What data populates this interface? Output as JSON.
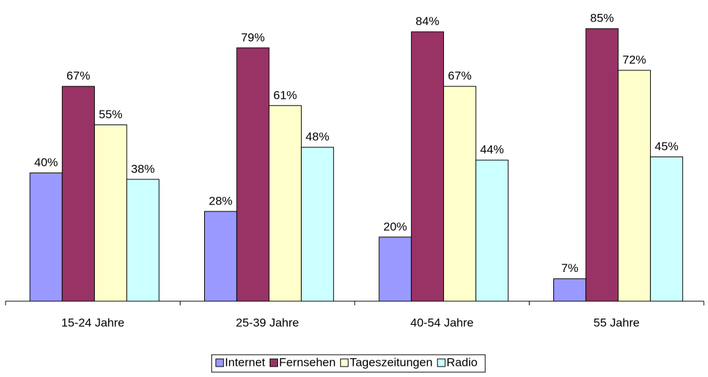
{
  "chart_data": {
    "type": "bar",
    "categories": [
      "15-24 Jahre",
      "25-39 Jahre",
      "40-54 Jahre",
      "55 Jahre"
    ],
    "series": [
      {
        "name": "Internet",
        "color": "#9999ff",
        "values": [
          40,
          28,
          20,
          7
        ],
        "value_labels": [
          "40%",
          "28%",
          "20%",
          "7%"
        ]
      },
      {
        "name": "Fernsehen",
        "color": "#993366",
        "values": [
          67,
          79,
          84,
          85
        ],
        "value_labels": [
          "67%",
          "79%",
          "84%",
          "85%"
        ]
      },
      {
        "name": "Tageszeitungen",
        "color": "#ffffcc",
        "values": [
          55,
          61,
          67,
          72
        ],
        "value_labels": [
          "55%",
          "61%",
          "67%",
          "72%"
        ]
      },
      {
        "name": "Radio",
        "color": "#ccffff",
        "values": [
          38,
          48,
          44,
          45
        ],
        "value_labels": [
          "38%",
          "48%",
          "44%",
          "45%"
        ]
      }
    ],
    "legend": "bottom"
  }
}
